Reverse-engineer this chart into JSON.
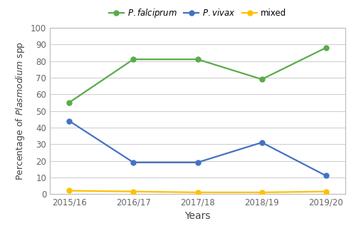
{
  "years": [
    "2015/16",
    "2016/17",
    "2017/18",
    "2018/19",
    "2019/20"
  ],
  "falciparum": [
    55,
    81,
    81,
    69,
    88
  ],
  "vivax": [
    44,
    19,
    19,
    31,
    11
  ],
  "mixed": [
    2,
    1.5,
    1,
    1,
    1.5
  ],
  "falciparum_color": "#5aab4a",
  "vivax_color": "#4472c4",
  "mixed_color": "#ffc000",
  "xlabel": "Years",
  "ylim": [
    0,
    100
  ],
  "yticks": [
    0,
    10,
    20,
    30,
    40,
    50,
    60,
    70,
    80,
    90,
    100
  ],
  "legend_mixed": "mixed",
  "marker": "o",
  "linewidth": 1.6,
  "markersize": 5,
  "grid_color": "#d0d0d0",
  "background_color": "#ffffff",
  "spine_color": "#bbbbbb",
  "tick_label_color": "#666666",
  "tick_fontsize": 8.5,
  "xlabel_fontsize": 10,
  "ylabel_fontsize": 9
}
